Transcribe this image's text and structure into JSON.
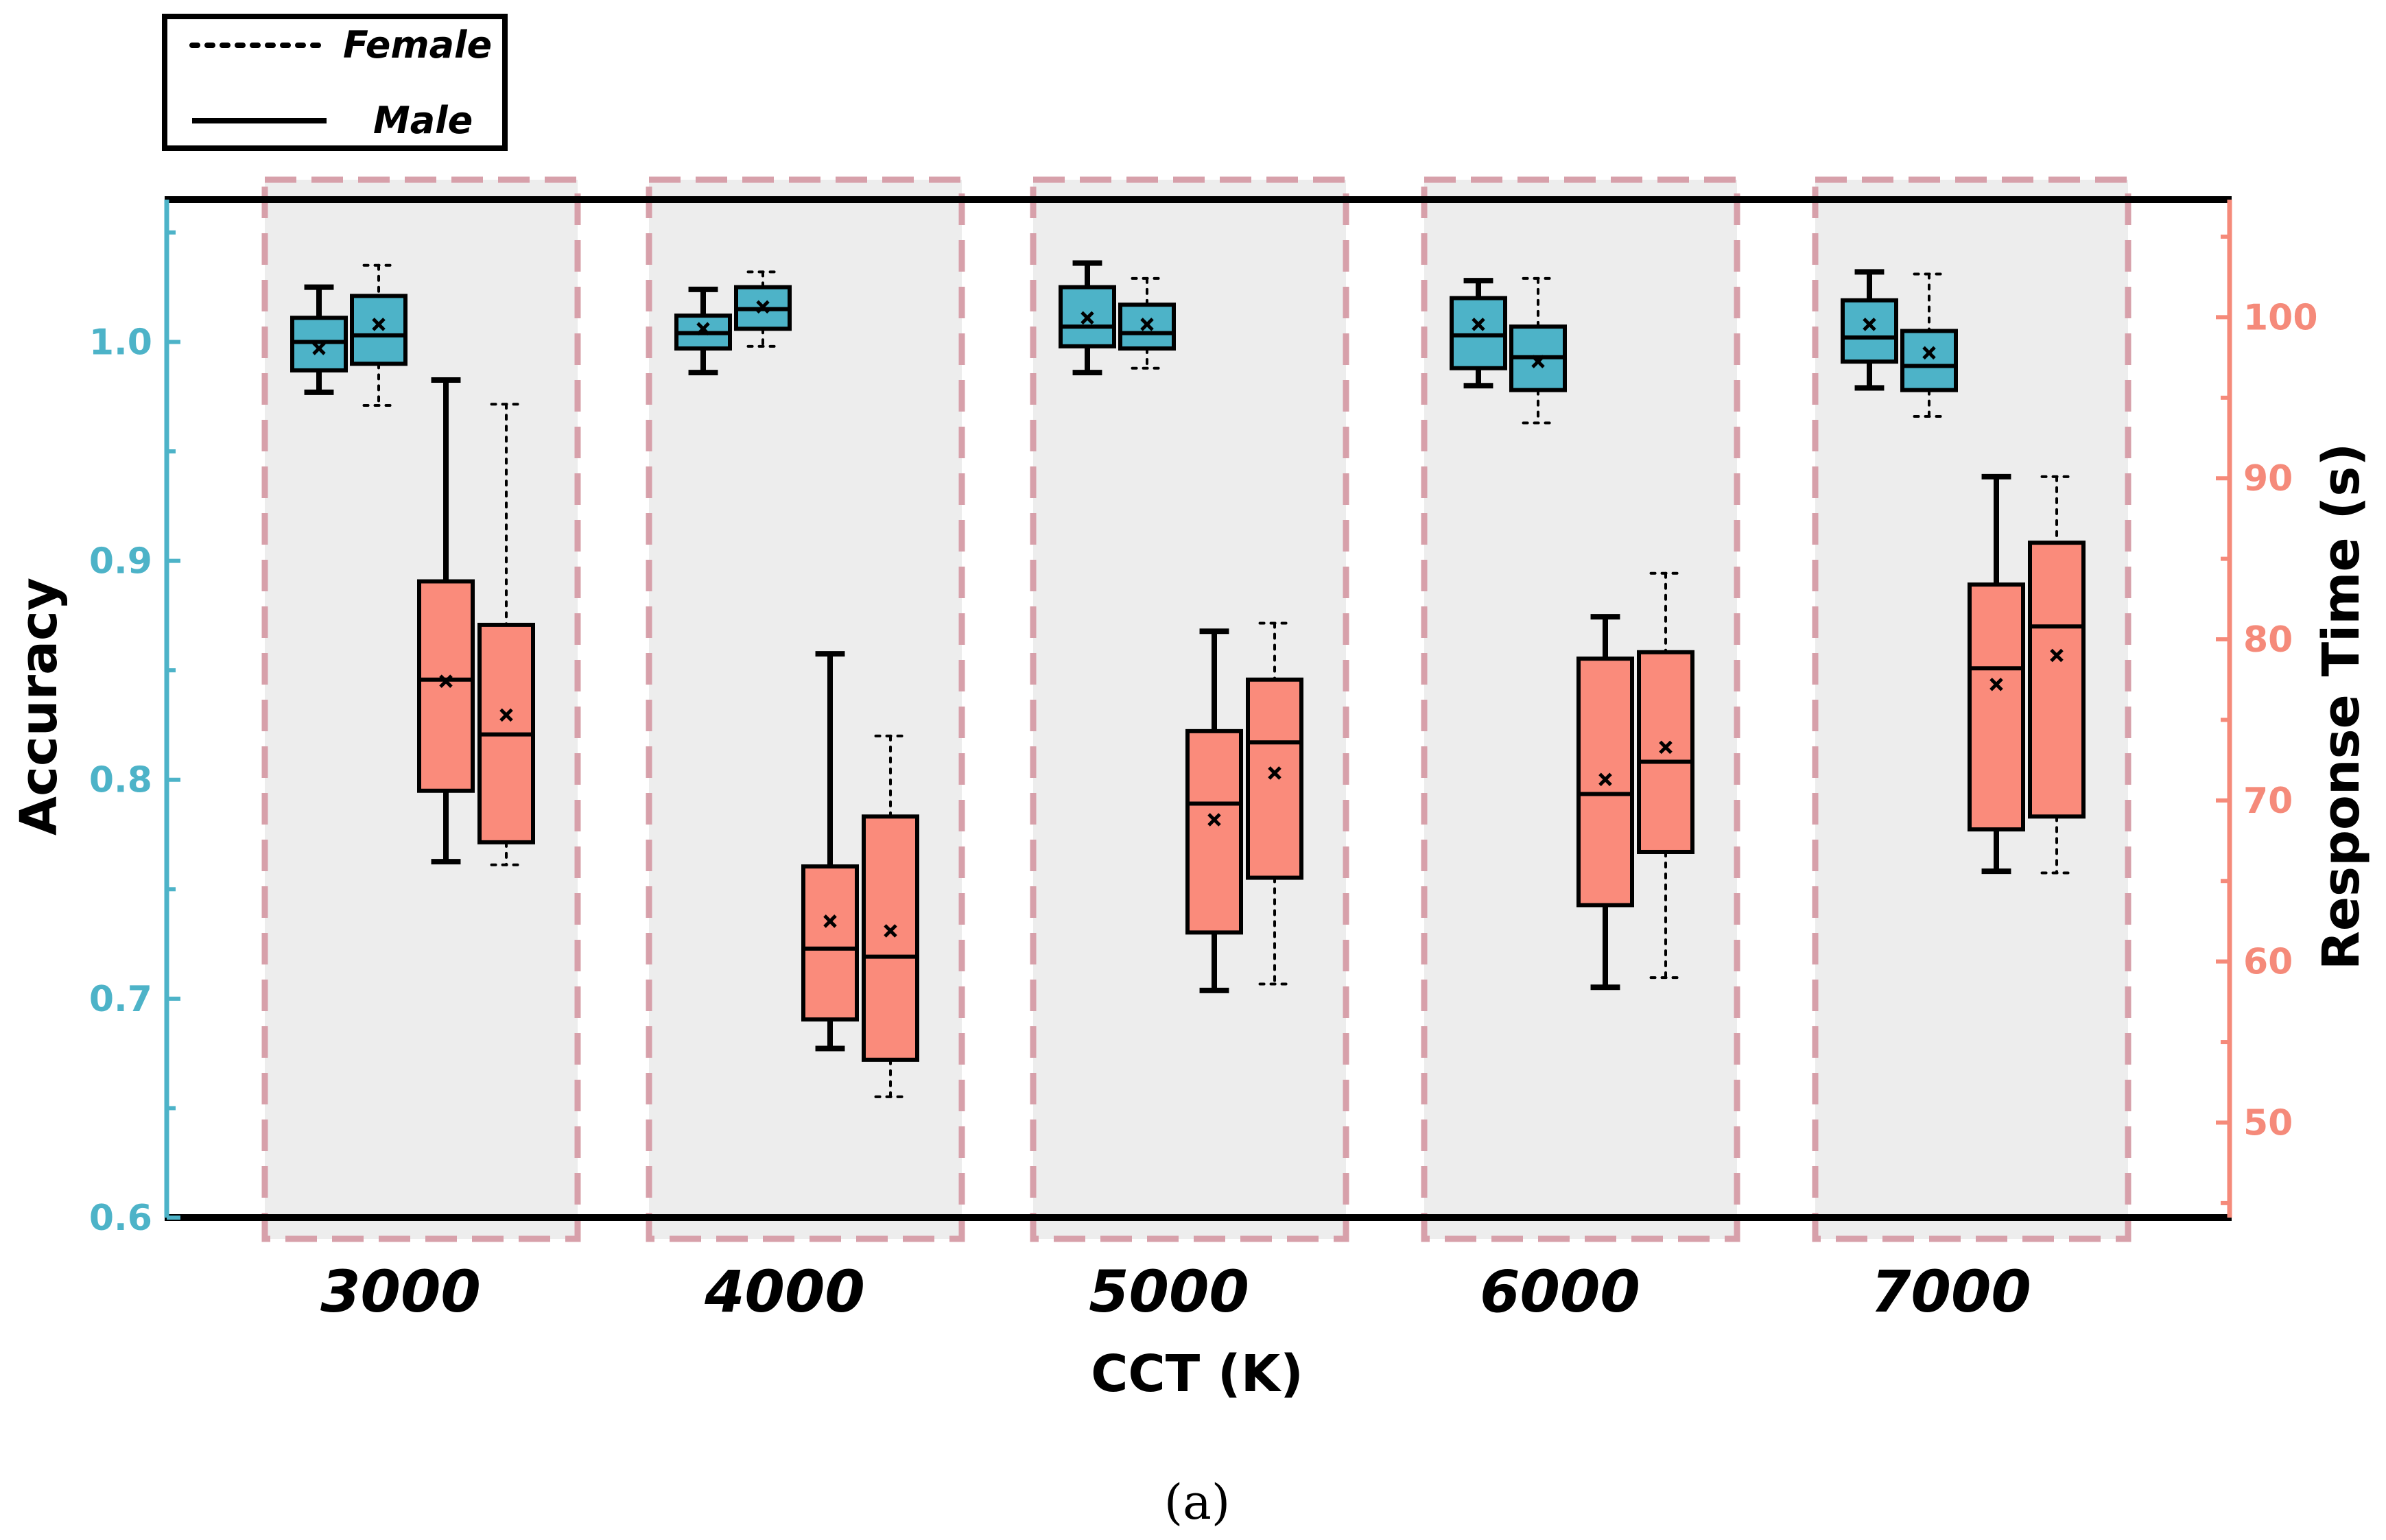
{
  "chart_data": {
    "type": "box",
    "caption": "(a)",
    "xlabel": "CCT (K)",
    "ylabel_left": "Accuracy",
    "ylabel_right": "Response Time (s)",
    "categories": [
      "3000",
      "4000",
      "5000",
      "6000",
      "7000"
    ],
    "ylim_left": [
      0.6,
      1.065
    ],
    "yticks_left": [
      "0.6",
      "0.7",
      "0.8",
      "0.9",
      "1.0"
    ],
    "ylim_right": [
      44.1,
      107.3
    ],
    "yticks_right": [
      "50",
      "60",
      "70",
      "80",
      "90",
      "100"
    ],
    "legend": [
      {
        "name": "Female",
        "style": "dotted"
      },
      {
        "name": "Male",
        "style": "solid"
      }
    ],
    "colors": {
      "accuracy": "#4db3c8",
      "response_time": "#fa8b7b",
      "band_fill": "#ededed",
      "band_border": "#d7a0aa"
    },
    "series": [
      {
        "name": "Accuracy (Male)",
        "axis": "left",
        "group": "Male",
        "boxes": [
          {
            "min": 0.977,
            "q1": 0.987,
            "median": 1.0,
            "q3": 1.011,
            "max": 1.025,
            "mean": 0.997
          },
          {
            "min": 0.986,
            "q1": 0.997,
            "median": 1.004,
            "q3": 1.012,
            "max": 1.024,
            "mean": 1.006
          },
          {
            "min": 0.986,
            "q1": 0.998,
            "median": 1.007,
            "q3": 1.025,
            "max": 1.036,
            "mean": 1.011
          },
          {
            "min": 0.98,
            "q1": 0.988,
            "median": 1.003,
            "q3": 1.02,
            "max": 1.028,
            "mean": 1.008
          },
          {
            "min": 0.979,
            "q1": 0.991,
            "median": 1.002,
            "q3": 1.019,
            "max": 1.032,
            "mean": 1.008
          }
        ]
      },
      {
        "name": "Accuracy (Female)",
        "axis": "left",
        "group": "Female",
        "boxes": [
          {
            "min": 0.971,
            "q1": 0.99,
            "median": 1.003,
            "q3": 1.021,
            "max": 1.035,
            "mean": 1.008
          },
          {
            "min": 0.998,
            "q1": 1.006,
            "median": 1.015,
            "q3": 1.025,
            "max": 1.032,
            "mean": 1.016
          },
          {
            "min": 0.988,
            "q1": 0.997,
            "median": 1.004,
            "q3": 1.017,
            "max": 1.029,
            "mean": 1.008
          },
          {
            "min": 0.963,
            "q1": 0.978,
            "median": 0.993,
            "q3": 1.007,
            "max": 1.029,
            "mean": 0.991
          },
          {
            "min": 0.966,
            "q1": 0.978,
            "median": 0.989,
            "q3": 1.005,
            "max": 1.031,
            "mean": 0.995
          }
        ]
      },
      {
        "name": "Response Time (Male)",
        "axis": "right",
        "group": "Male",
        "boxes": [
          {
            "min": 66.2,
            "q1": 70.6,
            "median": 77.5,
            "q3": 83.6,
            "max": 96.1,
            "mean": 77.4
          },
          {
            "min": 54.6,
            "q1": 56.4,
            "median": 60.8,
            "q3": 65.9,
            "max": 79.1,
            "mean": 62.5
          },
          {
            "min": 58.2,
            "q1": 61.8,
            "median": 69.8,
            "q3": 74.3,
            "max": 80.5,
            "mean": 68.8
          },
          {
            "min": 58.4,
            "q1": 63.5,
            "median": 70.4,
            "q3": 78.8,
            "max": 81.4,
            "mean": 71.3
          },
          {
            "min": 65.6,
            "q1": 68.2,
            "median": 78.2,
            "q3": 83.4,
            "max": 90.1,
            "mean": 77.2
          }
        ]
      },
      {
        "name": "Response Time (Female)",
        "axis": "right",
        "group": "Female",
        "boxes": [
          {
            "min": 66.0,
            "q1": 67.4,
            "median": 74.1,
            "q3": 80.9,
            "max": 94.6,
            "mean": 75.3
          },
          {
            "min": 51.6,
            "q1": 53.9,
            "median": 60.3,
            "q3": 69.0,
            "max": 74.0,
            "mean": 61.9
          },
          {
            "min": 58.6,
            "q1": 65.2,
            "median": 73.6,
            "q3": 77.5,
            "max": 81.0,
            "mean": 71.7
          },
          {
            "min": 59.0,
            "q1": 66.8,
            "median": 72.4,
            "q3": 79.2,
            "max": 84.1,
            "mean": 73.3
          },
          {
            "min": 65.5,
            "q1": 69.0,
            "median": 80.8,
            "q3": 86.0,
            "max": 90.1,
            "mean": 79.0
          }
        ]
      }
    ]
  }
}
